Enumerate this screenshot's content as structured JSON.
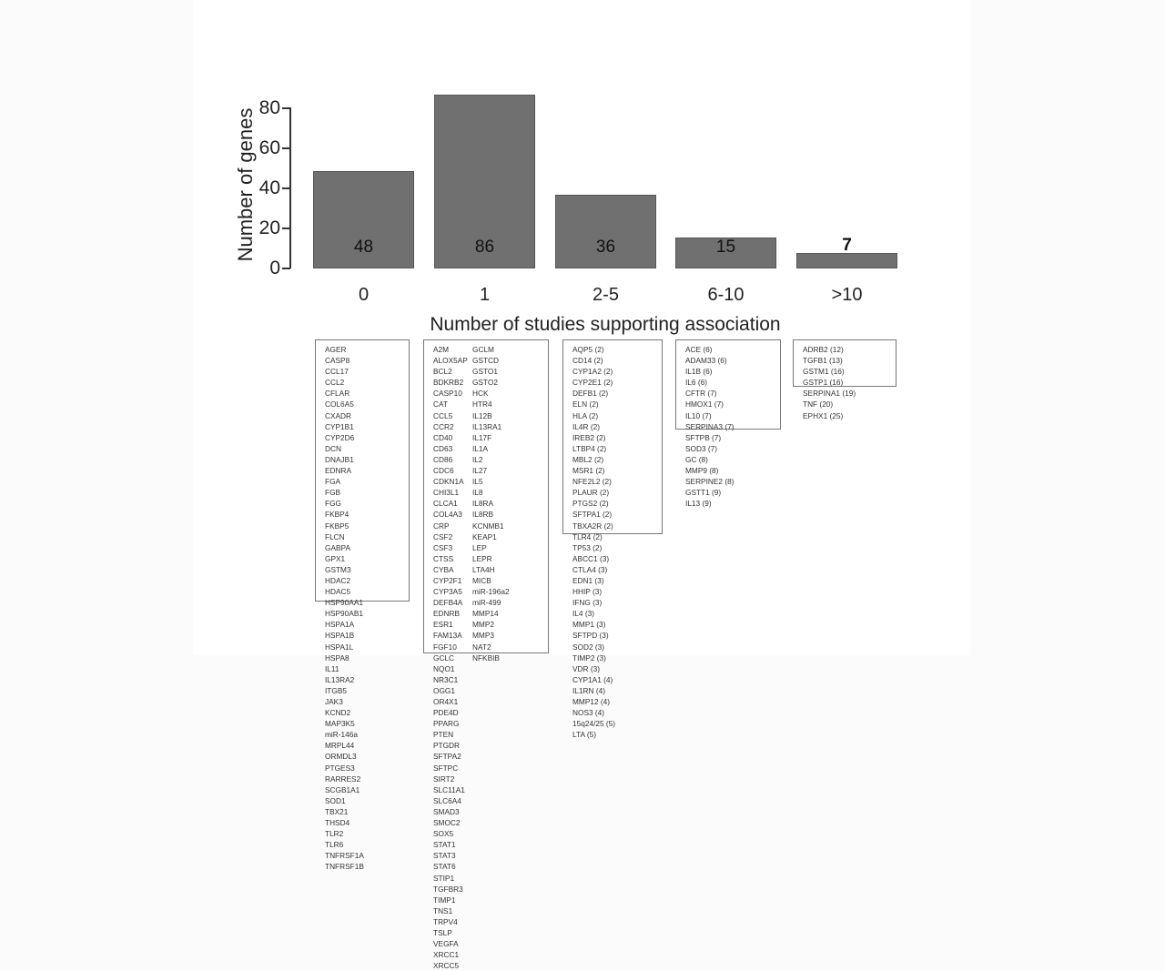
{
  "chart_data": {
    "type": "bar",
    "title": "",
    "xlabel": "Number of studies supporting association",
    "ylabel": "Number of genes",
    "categories": [
      "0",
      "1",
      "2-5",
      "6-10",
      ">10"
    ],
    "values": [
      48,
      86,
      36,
      15,
      7
    ],
    "ylim": [
      0,
      86
    ],
    "yticks": [
      0,
      20,
      40,
      60,
      80
    ],
    "grid": false,
    "legend": null,
    "bar_color": "#707070",
    "value_labels": [
      "48",
      "86",
      "36",
      "15",
      "7"
    ]
  },
  "axis": {
    "ticks": [
      "0",
      "20",
      "40",
      "60",
      "80"
    ]
  },
  "gene_lists": {
    "cat0": {
      "columns": [
        [
          "AGER",
          "CASP8",
          "CCL17",
          "CCL2",
          "CFLAR",
          "COL6A5",
          "CXADR",
          "CYP1B1",
          "CYP2D6",
          "DCN",
          "DNAJB1",
          "EDNRA",
          "FGA",
          "FGB",
          "FGG",
          "FKBP4",
          "FKBP5",
          "FLCN",
          "GABPA",
          "GPX1",
          "GSTM3",
          "HDAC2",
          "HDAC5",
          "HSP90AA1"
        ],
        [
          "HSP90AB1",
          "HSPA1A",
          "HSPA1B",
          "HSPA1L",
          "HSPA8",
          "IL11",
          "IL13RA2",
          "ITGB5",
          "JAK3",
          "KCND2",
          "MAP3K5",
          "miR-146a",
          "MRPL44",
          "ORMDL3",
          "PTGES3",
          "RARRES2",
          "SCGB1A1",
          "SOD1",
          "TBX21",
          "THSD4",
          "TLR2",
          "TLR6",
          "TNFRSF1A",
          "TNFRSF1B"
        ]
      ]
    },
    "cat1": {
      "columns": [
        [
          "A2M",
          "ALOX5AP",
          "BCL2",
          "BDKRB2",
          "CASP10",
          "CAT",
          "CCL5",
          "CCR2",
          "CD40",
          "CD63",
          "CD86",
          "CDC6",
          "CDKN1A",
          "CHI3L1",
          "CLCA1",
          "COL4A3",
          "CRP",
          "CSF2",
          "CSF3",
          "CTSS",
          "CYBA",
          "CYP2F1",
          "CYP3A5",
          "DEFB4A",
          "EDNRB",
          "ESR1",
          "FAM13A",
          "FGF10",
          "GCLC"
        ],
        [
          "GCLM",
          "GSTCD",
          "GSTO1",
          "GSTO2",
          "HCK",
          "HTR4",
          "IL12B",
          "IL13RA1",
          "IL17F",
          "IL1A",
          "IL2",
          "IL27",
          "IL5",
          "IL8",
          "IL8RA",
          "IL8RB",
          "KCNMB1",
          "KEAP1",
          "LEP",
          "LEPR",
          "LTA4H",
          "MICB",
          "miR-196a2",
          "miR-499",
          "MMP14",
          "MMP2",
          "MMP3",
          "NAT2",
          "NFKBIB"
        ],
        [
          "NQO1",
          "NR3C1",
          "OGG1",
          "OR4X1",
          "PDE4D",
          "PPARG",
          "PTEN",
          "PTGDR",
          "SFTPA2",
          "SFTPC",
          "SIRT2",
          "SLC11A1",
          "SLC6A4",
          "SMAD3",
          "SMOC2",
          "SOX5",
          "STAT1",
          "STAT3",
          "STAT6",
          "STIP1",
          "TGFBR3",
          "TIMP1",
          "TNS1",
          "TRPV4",
          "TSLP",
          "VEGFA",
          "XRCC1",
          "XRCC5"
        ]
      ]
    },
    "cat2_5": {
      "columns": [
        [
          "AQP5 (2)",
          "CD14 (2)",
          "CYP1A2 (2)",
          "CYP2E1 (2)",
          "DEFB1 (2)",
          "ELN (2)",
          "HLA  (2)",
          "IL4R (2)",
          "IREB2 (2)",
          "LTBP4 (2)",
          "MBL2 (2)",
          "MSR1 (2)",
          "NFE2L2 (2)",
          "PLAUR (2)",
          "PTGS2 (2)",
          "SFTPA1 (2)",
          "TBXA2R (2)",
          "TLR4 (2)"
        ],
        [
          "TP53 (2)",
          "ABCC1 (3)",
          "CTLA4 (3)",
          "EDN1 (3)",
          "HHIP (3)",
          "IFNG (3)",
          "IL4 (3)",
          "MMP1 (3)",
          "SFTPD (3)",
          "SOD2 (3)",
          "TIMP2 (3)",
          "VDR (3)",
          "CYP1A1 (4)",
          "IL1RN (4)",
          "MMP12 (4)",
          "NOS3 (4)",
          "15q24/25 (5)",
          "LTA (5)"
        ]
      ]
    },
    "cat6_10": {
      "columns": [
        [
          "ACE (6)",
          "ADAM33 (6)",
          "IL1B (6)",
          "IL6 (6)",
          "CFTR (7)",
          "HMOX1 (7)",
          "IL10 (7)",
          "SERPINA3 (7)"
        ],
        [
          "SFTPB (7)",
          "SOD3 (7)",
          "GC (8)",
          "MMP9 (8)",
          "SERPINE2 (8)",
          "GSTT1 (9)",
          "IL13 (9)"
        ]
      ]
    },
    "cat10plus": {
      "columns": [
        [
          "ADRB2 (12)",
          "TGFB1 (13)",
          "GSTM1 (16)",
          "GSTP1 (16)"
        ],
        [
          "SERPINA1 (19)",
          "TNF (20)",
          "EPHX1 (25)"
        ]
      ]
    }
  }
}
